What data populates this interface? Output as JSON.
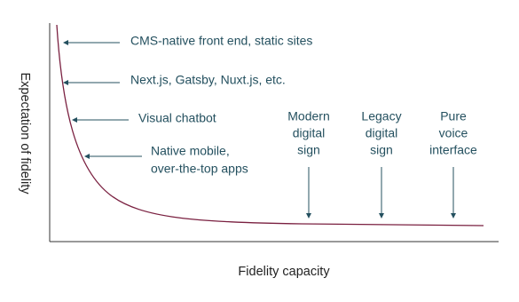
{
  "axes": {
    "x_label": "Fidelity capacity",
    "y_label": "Expectation of fidelity"
  },
  "annotations": [
    {
      "lines": [
        "CMS-native front end, static sites"
      ]
    },
    {
      "lines": [
        "Next.js, Gatsby, Nuxt.js, etc."
      ]
    },
    {
      "lines": [
        "Visual chatbot"
      ]
    },
    {
      "lines": [
        "Native mobile,",
        "over-the-top apps"
      ]
    },
    {
      "lines": [
        "Modern",
        "digital",
        "sign"
      ]
    },
    {
      "lines": [
        "Legacy",
        "digital",
        "sign"
      ]
    },
    {
      "lines": [
        "Pure",
        "voice",
        "interface"
      ]
    }
  ]
}
